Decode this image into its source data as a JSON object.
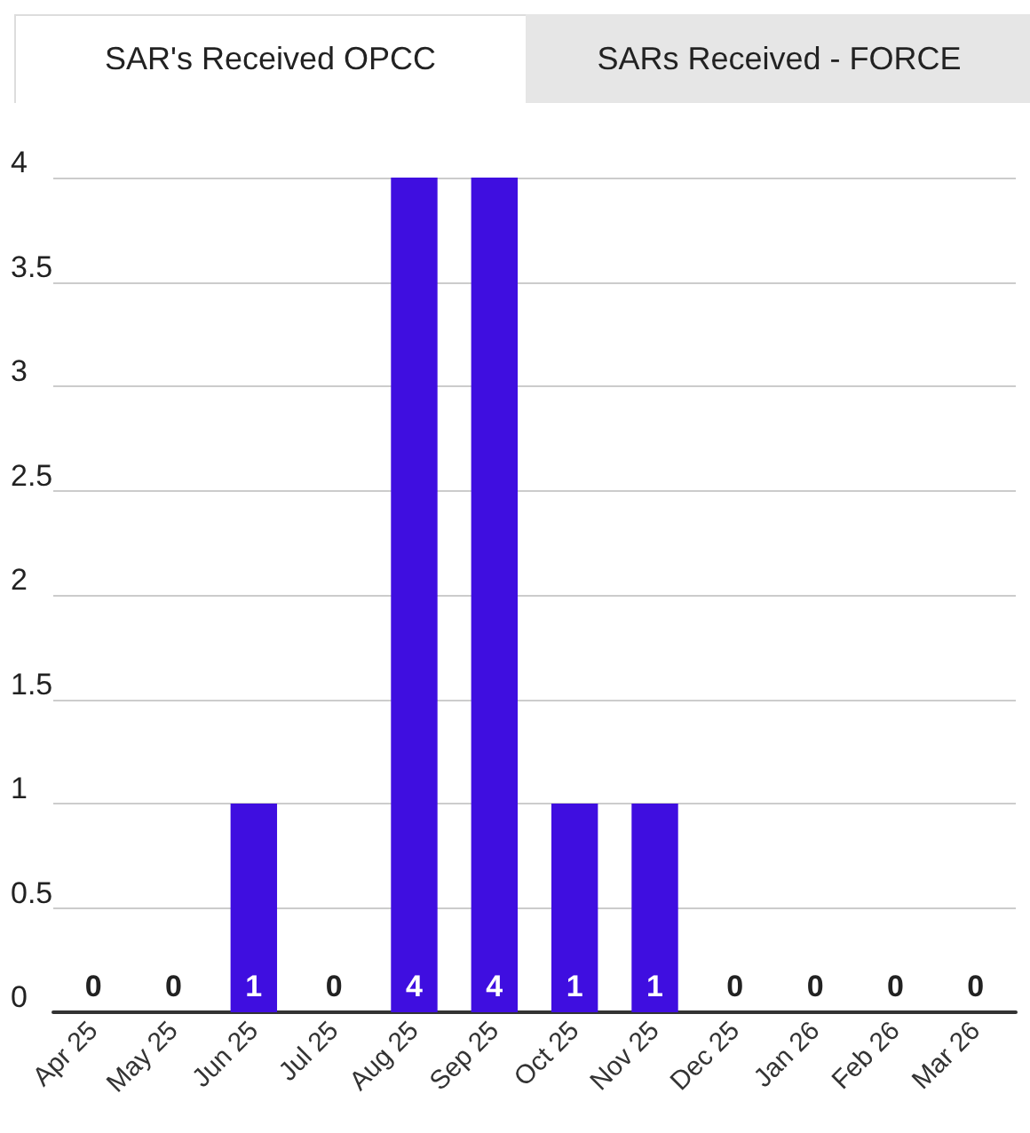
{
  "chart_data": {
    "type": "bar",
    "title": "SAR's Received OPCC",
    "annotations": [
      "SARs Received - FORCE"
    ],
    "categories": [
      "Apr 25",
      "May 25",
      "Jun 25",
      "Jul 25",
      "Aug 25",
      "Sep 25",
      "Oct 25",
      "Nov 25",
      "Dec 25",
      "Jan 26",
      "Feb 26",
      "Mar 26"
    ],
    "values": [
      0,
      0,
      1,
      0,
      4,
      4,
      1,
      1,
      0,
      0,
      0,
      0
    ],
    "color": "#3f0ee0",
    "ylim": [
      0,
      4
    ],
    "yticks": [
      0,
      0.5,
      1,
      1.5,
      2,
      2.5,
      3,
      3.5,
      4
    ],
    "grid": "y",
    "data_labels": true
  }
}
